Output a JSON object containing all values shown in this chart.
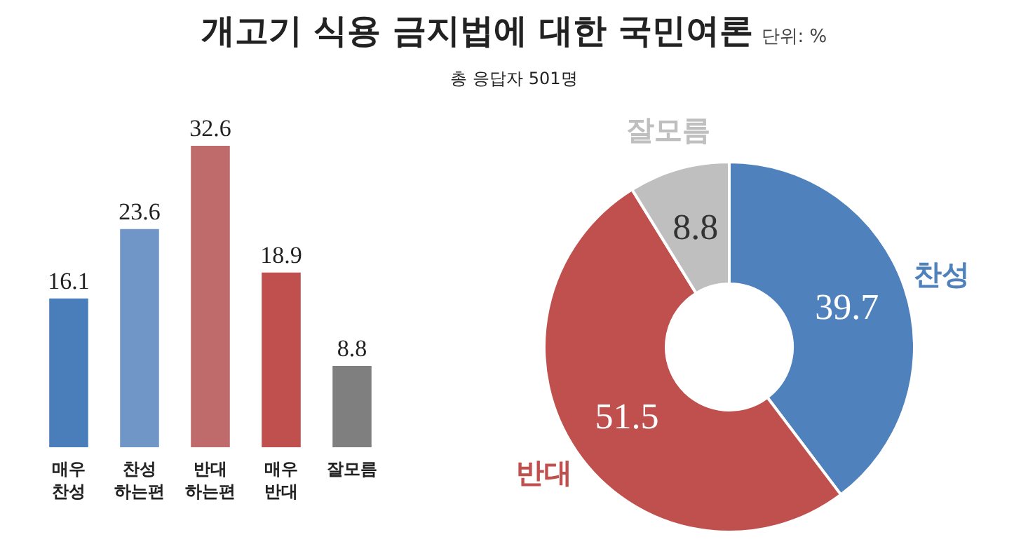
{
  "chart_data": [
    {
      "type": "bar",
      "categories": [
        "매우 찬성",
        "찬성 하는편",
        "반대 하는편",
        "매우 반대",
        "잘모름"
      ],
      "values": [
        16.1,
        23.6,
        32.6,
        18.9,
        8.8
      ],
      "colors": [
        "#4a7ebb",
        "#7096c8",
        "#c06b6b",
        "#c0504d",
        "#7f7f7f"
      ],
      "data_labels": true
    },
    {
      "type": "donut",
      "title": "개고기 식용 금지법에 대한 국민여론",
      "subtitle": "총 응답자 501명",
      "annotations": [
        "단위: %"
      ],
      "categories": [
        "찬성",
        "반대",
        "잘모름"
      ],
      "values": [
        39.7,
        51.5,
        8.8
      ],
      "colors": [
        "#4f81bd",
        "#c0504d",
        "#bfbfbf"
      ],
      "data_labels": true
    }
  ]
}
